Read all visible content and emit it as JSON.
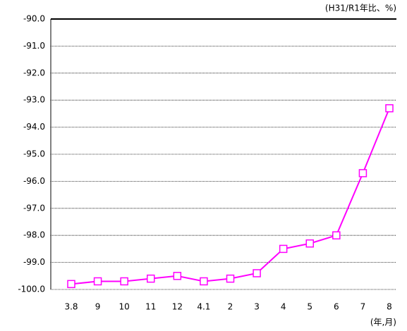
{
  "chart_data": {
    "type": "line",
    "annotations": [
      "(H31/R1年比、%)",
      "(年,月)"
    ],
    "categories": [
      "3.8",
      "9",
      "10",
      "11",
      "12",
      "4.1",
      "2",
      "3",
      "4",
      "5",
      "6",
      "7",
      "8"
    ],
    "series": [
      {
        "color": "#ff00ff",
        "values": [
          -99.8,
          -99.7,
          -99.7,
          -99.6,
          -99.5,
          -99.7,
          -99.6,
          -99.4,
          -98.5,
          -98.3,
          -98.0,
          -95.7,
          -93.3
        ]
      }
    ],
    "ylim": [
      -100,
      -90
    ],
    "yticks": [
      {
        "value": -90,
        "label": "-90.0"
      },
      {
        "value": -91,
        "label": "-91.0"
      },
      {
        "value": -92,
        "label": "-92.0"
      },
      {
        "value": -93,
        "label": "-93.0"
      },
      {
        "value": -94,
        "label": "-94.0"
      },
      {
        "value": -95,
        "label": "-95.0"
      },
      {
        "value": -96,
        "label": "-96.0"
      },
      {
        "value": -97,
        "label": "-97.0"
      },
      {
        "value": -98,
        "label": "-98.0"
      },
      {
        "value": -99,
        "label": "-99.0"
      },
      {
        "value": -100,
        "label": "-100.0"
      }
    ],
    "grid": true,
    "marker": "square"
  }
}
